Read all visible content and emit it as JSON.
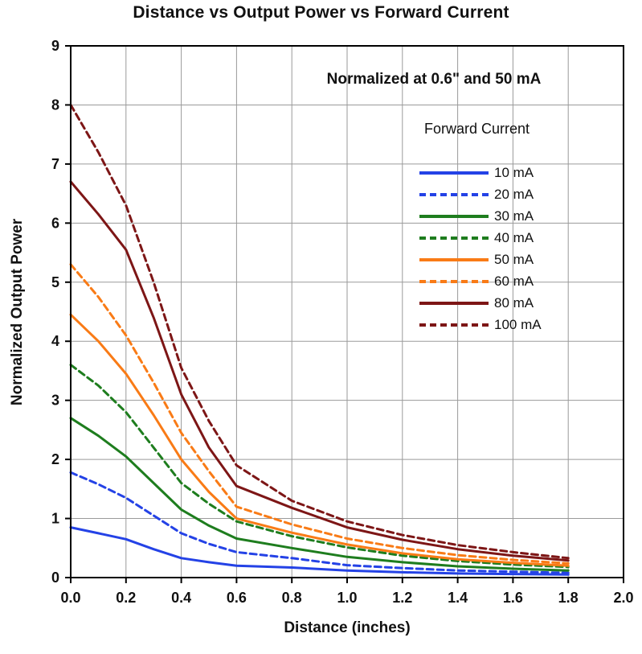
{
  "chart_data": {
    "type": "line",
    "title": "Distance vs Output Power vs Forward Current",
    "xlabel": "Distance (inches)",
    "ylabel": "Normalized Output Power",
    "annotation": "Normalized at 0.6\" and 50 mA",
    "legend_title": "Forward Current",
    "legend_position": "upper right inside",
    "grid": true,
    "xlim": [
      0,
      2.0
    ],
    "ylim": [
      0,
      9
    ],
    "x_tick_values": [
      0,
      0.2,
      0.4,
      0.6,
      0.8,
      1.0,
      1.2,
      1.4,
      1.6,
      1.8,
      2.0
    ],
    "x_tick_labels": [
      "0.0",
      "0.2",
      "0.4",
      "0.6",
      "0.8",
      "1.0",
      "1.2",
      "1.4",
      "1.6",
      "1.8",
      "2.0"
    ],
    "y_tick_values": [
      0,
      1,
      2,
      3,
      4,
      5,
      6,
      7,
      8,
      9
    ],
    "y_tick_labels": [
      "0",
      "1",
      "2",
      "3",
      "4",
      "5",
      "6",
      "7",
      "8",
      "9"
    ],
    "x": [
      0,
      0.1,
      0.2,
      0.3,
      0.4,
      0.5,
      0.6,
      0.8,
      1.0,
      1.2,
      1.4,
      1.6,
      1.8
    ],
    "series": [
      {
        "name": "10 mA",
        "color": "#2442e6",
        "style": "solid",
        "values": [
          0.85,
          0.75,
          0.65,
          0.48,
          0.33,
          0.26,
          0.2,
          0.17,
          0.12,
          0.09,
          0.07,
          0.06,
          0.05
        ]
      },
      {
        "name": "20 mA",
        "color": "#2442e6",
        "style": "dashed",
        "values": [
          1.78,
          1.58,
          1.35,
          1.05,
          0.75,
          0.57,
          0.43,
          0.33,
          0.21,
          0.16,
          0.12,
          0.1,
          0.08
        ]
      },
      {
        "name": "30 mA",
        "color": "#1e7d1e",
        "style": "solid",
        "values": [
          2.7,
          2.4,
          2.05,
          1.6,
          1.15,
          0.88,
          0.66,
          0.5,
          0.35,
          0.26,
          0.19,
          0.15,
          0.12
        ]
      },
      {
        "name": "40 mA",
        "color": "#1e7d1e",
        "style": "dashed",
        "values": [
          3.6,
          3.25,
          2.8,
          2.2,
          1.6,
          1.25,
          0.95,
          0.7,
          0.51,
          0.37,
          0.28,
          0.22,
          0.18
        ]
      },
      {
        "name": "50 mA",
        "color": "#f97b16",
        "style": "solid",
        "values": [
          4.45,
          4.0,
          3.45,
          2.75,
          2.0,
          1.45,
          1.0,
          0.76,
          0.56,
          0.41,
          0.31,
          0.25,
          0.2
        ]
      },
      {
        "name": "60 mA",
        "color": "#f97b16",
        "style": "dashed",
        "values": [
          5.3,
          4.75,
          4.1,
          3.3,
          2.45,
          1.8,
          1.2,
          0.9,
          0.66,
          0.5,
          0.38,
          0.3,
          0.24
        ]
      },
      {
        "name": "80 mA",
        "color": "#7d1616",
        "style": "solid",
        "values": [
          6.7,
          6.15,
          5.55,
          4.4,
          3.1,
          2.2,
          1.55,
          1.18,
          0.85,
          0.64,
          0.48,
          0.37,
          0.29
        ]
      },
      {
        "name": "100 mA",
        "color": "#7d1616",
        "style": "dashed",
        "values": [
          8.0,
          7.2,
          6.3,
          5.0,
          3.55,
          2.65,
          1.9,
          1.3,
          0.95,
          0.72,
          0.55,
          0.43,
          0.33
        ]
      }
    ],
    "colors": {
      "grid": "#9a9a9a",
      "axis": "#000000",
      "background": "#ffffff"
    }
  }
}
